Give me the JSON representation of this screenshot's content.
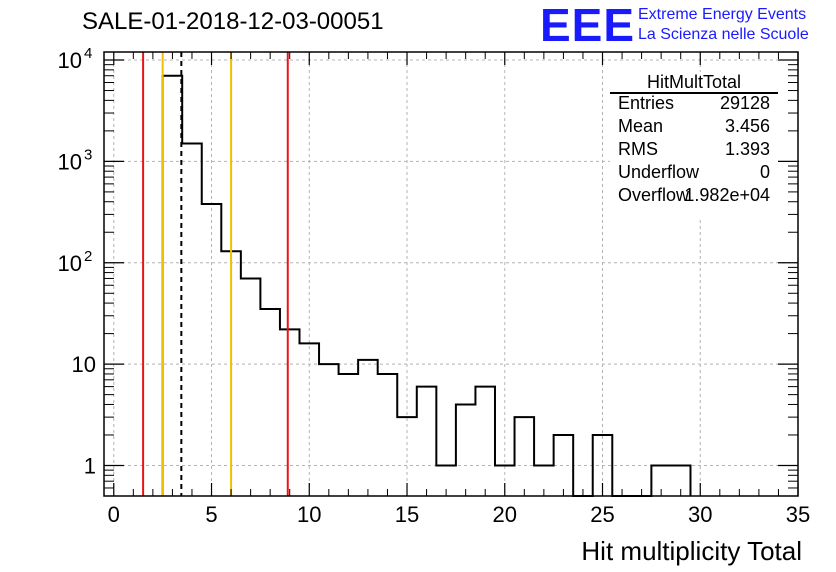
{
  "header": {
    "title": "SALE-01-2018-12-03-00051",
    "logo_text": "EEE",
    "logo_line1": "Extreme Energy Events",
    "logo_line2": "La Scienza nelle Scuole"
  },
  "stats_box": {
    "name": "HitMultTotal",
    "rows": [
      {
        "label": "Entries",
        "value": "29128"
      },
      {
        "label": "Mean",
        "value": "3.456"
      },
      {
        "label": "RMS",
        "value": "1.393"
      },
      {
        "label": "Underflow",
        "value": "0"
      },
      {
        "label": "Overflow",
        "value": "1.982e+04"
      }
    ]
  },
  "chart_data": {
    "type": "histogram",
    "xlabel": "Hit multiplicity Total",
    "ylabel": "",
    "xlim": [
      -0.5,
      35
    ],
    "ylim": [
      0.5,
      12000
    ],
    "y_scale": "log",
    "grid": true,
    "bin_width": 1,
    "bins": [
      {
        "lo": 2.5,
        "hi": 3.5,
        "count": 7000
      },
      {
        "lo": 3.5,
        "hi": 4.5,
        "count": 1500
      },
      {
        "lo": 4.5,
        "hi": 5.5,
        "count": 380
      },
      {
        "lo": 5.5,
        "hi": 6.5,
        "count": 130
      },
      {
        "lo": 6.5,
        "hi": 7.5,
        "count": 70
      },
      {
        "lo": 7.5,
        "hi": 8.5,
        "count": 35
      },
      {
        "lo": 8.5,
        "hi": 9.5,
        "count": 22
      },
      {
        "lo": 9.5,
        "hi": 10.5,
        "count": 16
      },
      {
        "lo": 10.5,
        "hi": 11.5,
        "count": 10
      },
      {
        "lo": 11.5,
        "hi": 12.5,
        "count": 8
      },
      {
        "lo": 12.5,
        "hi": 13.5,
        "count": 11
      },
      {
        "lo": 13.5,
        "hi": 14.5,
        "count": 8
      },
      {
        "lo": 14.5,
        "hi": 15.5,
        "count": 3
      },
      {
        "lo": 15.5,
        "hi": 16.5,
        "count": 6
      },
      {
        "lo": 16.5,
        "hi": 17.5,
        "count": 1
      },
      {
        "lo": 17.5,
        "hi": 18.5,
        "count": 4
      },
      {
        "lo": 18.5,
        "hi": 19.5,
        "count": 6
      },
      {
        "lo": 19.5,
        "hi": 20.5,
        "count": 1
      },
      {
        "lo": 20.5,
        "hi": 21.5,
        "count": 3
      },
      {
        "lo": 21.5,
        "hi": 22.5,
        "count": 1
      },
      {
        "lo": 22.5,
        "hi": 23.5,
        "count": 2
      },
      {
        "lo": 23.5,
        "hi": 24.5,
        "count": 0
      },
      {
        "lo": 24.5,
        "hi": 25.5,
        "count": 2
      },
      {
        "lo": 25.5,
        "hi": 26.5,
        "count": 0
      },
      {
        "lo": 26.5,
        "hi": 27.5,
        "count": 0
      },
      {
        "lo": 27.5,
        "hi": 28.5,
        "count": 1
      },
      {
        "lo": 28.5,
        "hi": 29.5,
        "count": 1
      }
    ],
    "x_ticks": [
      0,
      5,
      10,
      15,
      20,
      25,
      30,
      35
    ],
    "y_ticks": [
      {
        "value": 1,
        "label": "1"
      },
      {
        "value": 10,
        "label": "10"
      },
      {
        "value": 100,
        "label": "10",
        "exp": "2"
      },
      {
        "value": 1000,
        "label": "10",
        "exp": "3"
      },
      {
        "value": 10000,
        "label": "10",
        "exp": "4"
      }
    ],
    "vertical_lines": [
      {
        "x": 1.5,
        "color": "#e8141a",
        "style": "solid"
      },
      {
        "x": 2.5,
        "color": "#f0c000",
        "style": "solid"
      },
      {
        "x": 3.456,
        "color": "#000000",
        "style": "dashed"
      },
      {
        "x": 6.0,
        "color": "#f0c000",
        "style": "solid"
      },
      {
        "x": 8.9,
        "color": "#e8141a",
        "style": "solid"
      }
    ],
    "colors": {
      "histogram": "#000000",
      "grid": "#b4b4b4"
    }
  }
}
